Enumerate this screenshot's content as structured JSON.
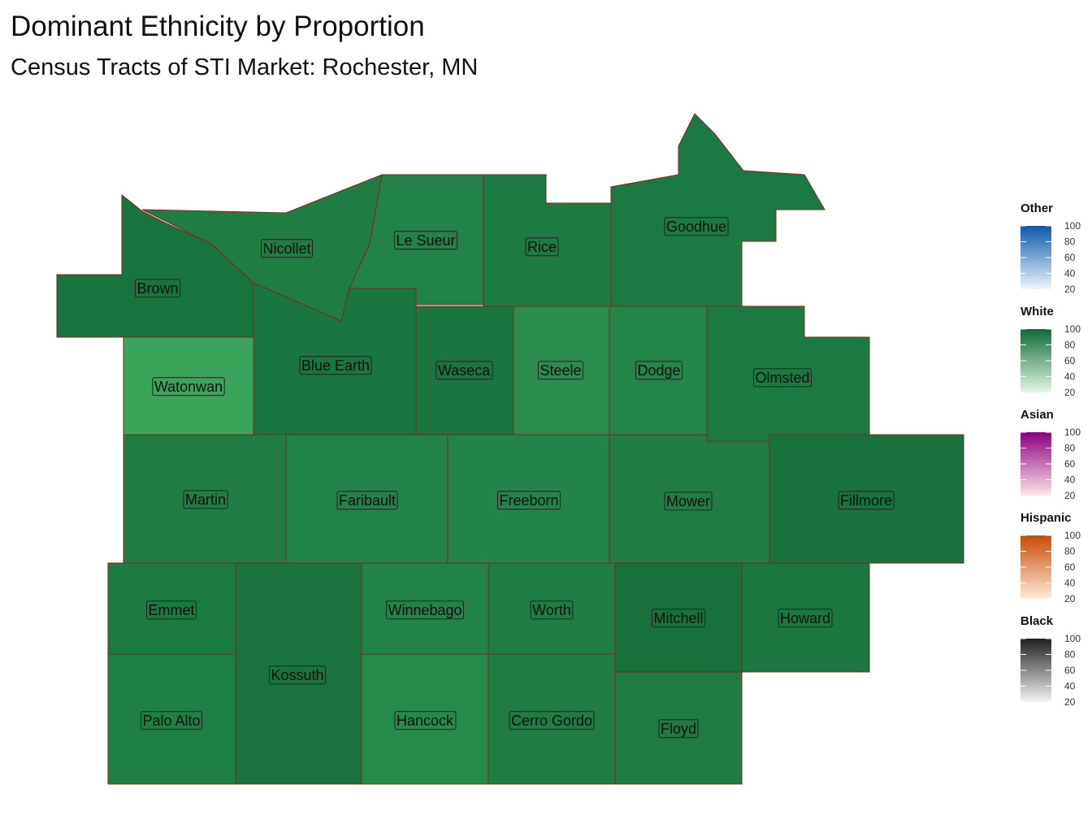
{
  "title": "Dominant Ethnicity by Proportion",
  "subtitle": "Census Tracts of STI Market: Rochester, MN",
  "counties": [
    "Brown",
    "Nicollet",
    "Le Sueur",
    "Rice",
    "Goodhue",
    "Blue Earth",
    "Waseca",
    "Steele",
    "Dodge",
    "Olmsted",
    "Watonwan",
    "Martin",
    "Faribault",
    "Freeborn",
    "Mower",
    "Fillmore",
    "Emmet",
    "Palo Alto",
    "Kossuth",
    "Winnebago",
    "Hancock",
    "Worth",
    "Cerro Gordo",
    "Mitchell",
    "Floyd",
    "Howard"
  ],
  "legends": [
    {
      "name": "Other",
      "colors": [
        "#eef4fb",
        "#0b5aa8"
      ],
      "ticks": [
        20,
        40,
        60,
        80,
        100
      ]
    },
    {
      "name": "White",
      "colors": [
        "#e6f5e6",
        "#0d6b37"
      ],
      "ticks": [
        20,
        40,
        60,
        80,
        100
      ]
    },
    {
      "name": "Asian",
      "colors": [
        "#fde4e8",
        "#8c0080"
      ],
      "ticks": [
        20,
        40,
        60,
        80,
        100
      ]
    },
    {
      "name": "Hispanic",
      "colors": [
        "#feecd9",
        "#c94a06"
      ],
      "ticks": [
        20,
        40,
        60,
        80,
        100
      ]
    },
    {
      "name": "Black",
      "colors": [
        "#f4f4f4",
        "#202020"
      ],
      "ticks": [
        20,
        40,
        60,
        80,
        100
      ]
    }
  ]
}
